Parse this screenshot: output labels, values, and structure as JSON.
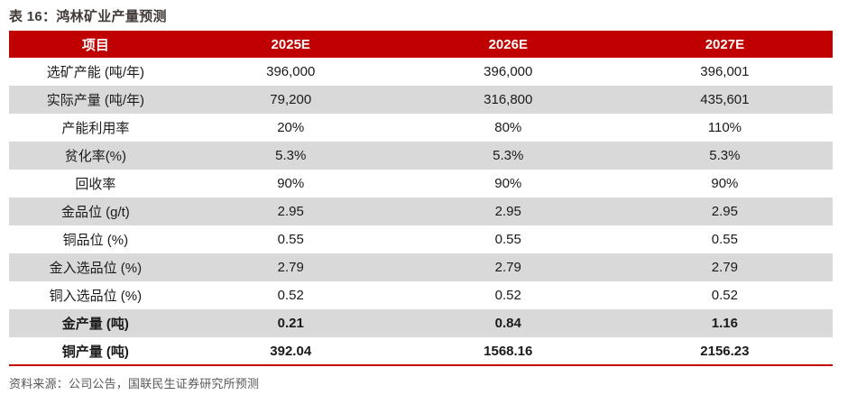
{
  "title": "表 16：鸿林矿业产量预测",
  "table": {
    "columns": [
      "项目",
      "2025E",
      "2026E",
      "2027E"
    ],
    "rows": [
      {
        "label": "选矿产能 (吨/年)",
        "values": [
          "396,000",
          "396,000",
          "396,001"
        ],
        "bold": false
      },
      {
        "label": "实际产量 (吨/年)",
        "values": [
          "79,200",
          "316,800",
          "435,601"
        ],
        "bold": false
      },
      {
        "label": "产能利用率",
        "values": [
          "20%",
          "80%",
          "110%"
        ],
        "bold": false
      },
      {
        "label": "贫化率(%)",
        "values": [
          "5.3%",
          "5.3%",
          "5.3%"
        ],
        "bold": false
      },
      {
        "label": "回收率",
        "values": [
          "90%",
          "90%",
          "90%"
        ],
        "bold": false
      },
      {
        "label": "金品位 (g/t)",
        "values": [
          "2.95",
          "2.95",
          "2.95"
        ],
        "bold": false
      },
      {
        "label": "铜品位 (%)",
        "values": [
          "0.55",
          "0.55",
          "0.55"
        ],
        "bold": false
      },
      {
        "label": "金入选品位 (%)",
        "values": [
          "2.79",
          "2.79",
          "2.79"
        ],
        "bold": false
      },
      {
        "label": "铜入选品位 (%)",
        "values": [
          "0.52",
          "0.52",
          "0.52"
        ],
        "bold": false
      },
      {
        "label": "金产量 (吨)",
        "values": [
          "0.21",
          "0.84",
          "1.16"
        ],
        "bold": true
      },
      {
        "label": "铜产量 (吨)",
        "values": [
          "392.04",
          "1568.16",
          "2156.23"
        ],
        "bold": true
      }
    ]
  },
  "footer": {
    "source": "资料来源：公司公告，国联民生证券研究所预测"
  },
  "colors": {
    "header_bg": "#c00000",
    "stripe_bg": "#d9d9d9",
    "bottom_rule": "#c00000",
    "title_text": "#413a37",
    "footer_text": "#595959",
    "body_text": "#1a1a1a"
  }
}
